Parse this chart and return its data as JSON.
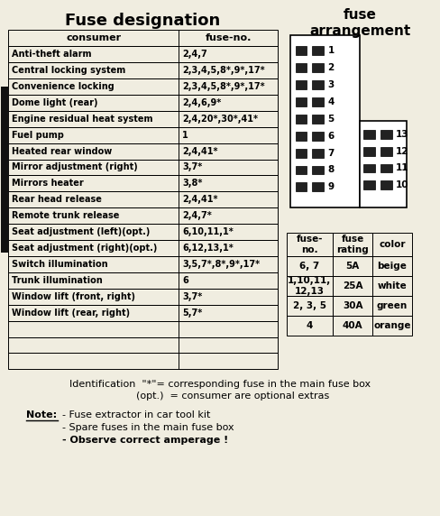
{
  "title1": "Fuse designation",
  "title2": "fuse\narrangement",
  "bg_color": "#f0ede0",
  "table_rows": [
    [
      "consumer",
      "fuse-no."
    ],
    [
      "Anti-theft alarm",
      "2,4,7"
    ],
    [
      "Central locking system",
      "2,3,4,5,8*,9*,17*"
    ],
    [
      "Convenience locking",
      "2,3,4,5,8*,9*,17*"
    ],
    [
      "Dome light (rear)",
      "2,4,6,9*"
    ],
    [
      "Engine residual heat system",
      "2,4,20*,30*,41*"
    ],
    [
      "Fuel pump",
      "1"
    ],
    [
      "Heated rear window",
      "2,4,41*"
    ],
    [
      "Mirror adjustment (right)",
      "3,7*"
    ],
    [
      "Mirrors heater",
      "3,8*"
    ],
    [
      "Rear head release",
      "2,4,41*"
    ],
    [
      "Remote trunk release",
      "2,4,7*"
    ],
    [
      "Seat adjustment (left)(opt.)",
      "6,10,11,1*"
    ],
    [
      "Seat adjustment (right)(opt.)",
      "6,12,13,1*"
    ],
    [
      "Switch illumination",
      "3,5,7*,8*,9*,17*"
    ],
    [
      "Trunk illumination",
      "6"
    ],
    [
      "Window lift (front, right)",
      "3,7*"
    ],
    [
      "Window lift (rear, right)",
      "5,7*"
    ],
    [
      "",
      ""
    ],
    [
      "",
      ""
    ],
    [
      "",
      ""
    ]
  ],
  "rating_table": [
    [
      "fuse-\nno.",
      "fuse\nrating",
      "color"
    ],
    [
      "6, 7",
      "5A",
      "beige"
    ],
    [
      "1,10,11,\n12,13",
      "25A",
      "white"
    ],
    [
      "2, 3, 5",
      "30A",
      "green"
    ],
    [
      "4",
      "40A",
      "orange"
    ]
  ],
  "note_text1": "Identification  \"*\"= corresponding fuse in the main fuse box",
  "note_text2": "        (opt.)  = consumer are optional extras",
  "note_label": "Note:",
  "note_bullets": [
    [
      "- Fuse extractor in car tool kit",
      false
    ],
    [
      "- Spare fuses in the main fuse box",
      false
    ],
    [
      "- Observe correct amperage !",
      true
    ]
  ],
  "fuse_color": "#222222",
  "black_bar_color": "#111111"
}
